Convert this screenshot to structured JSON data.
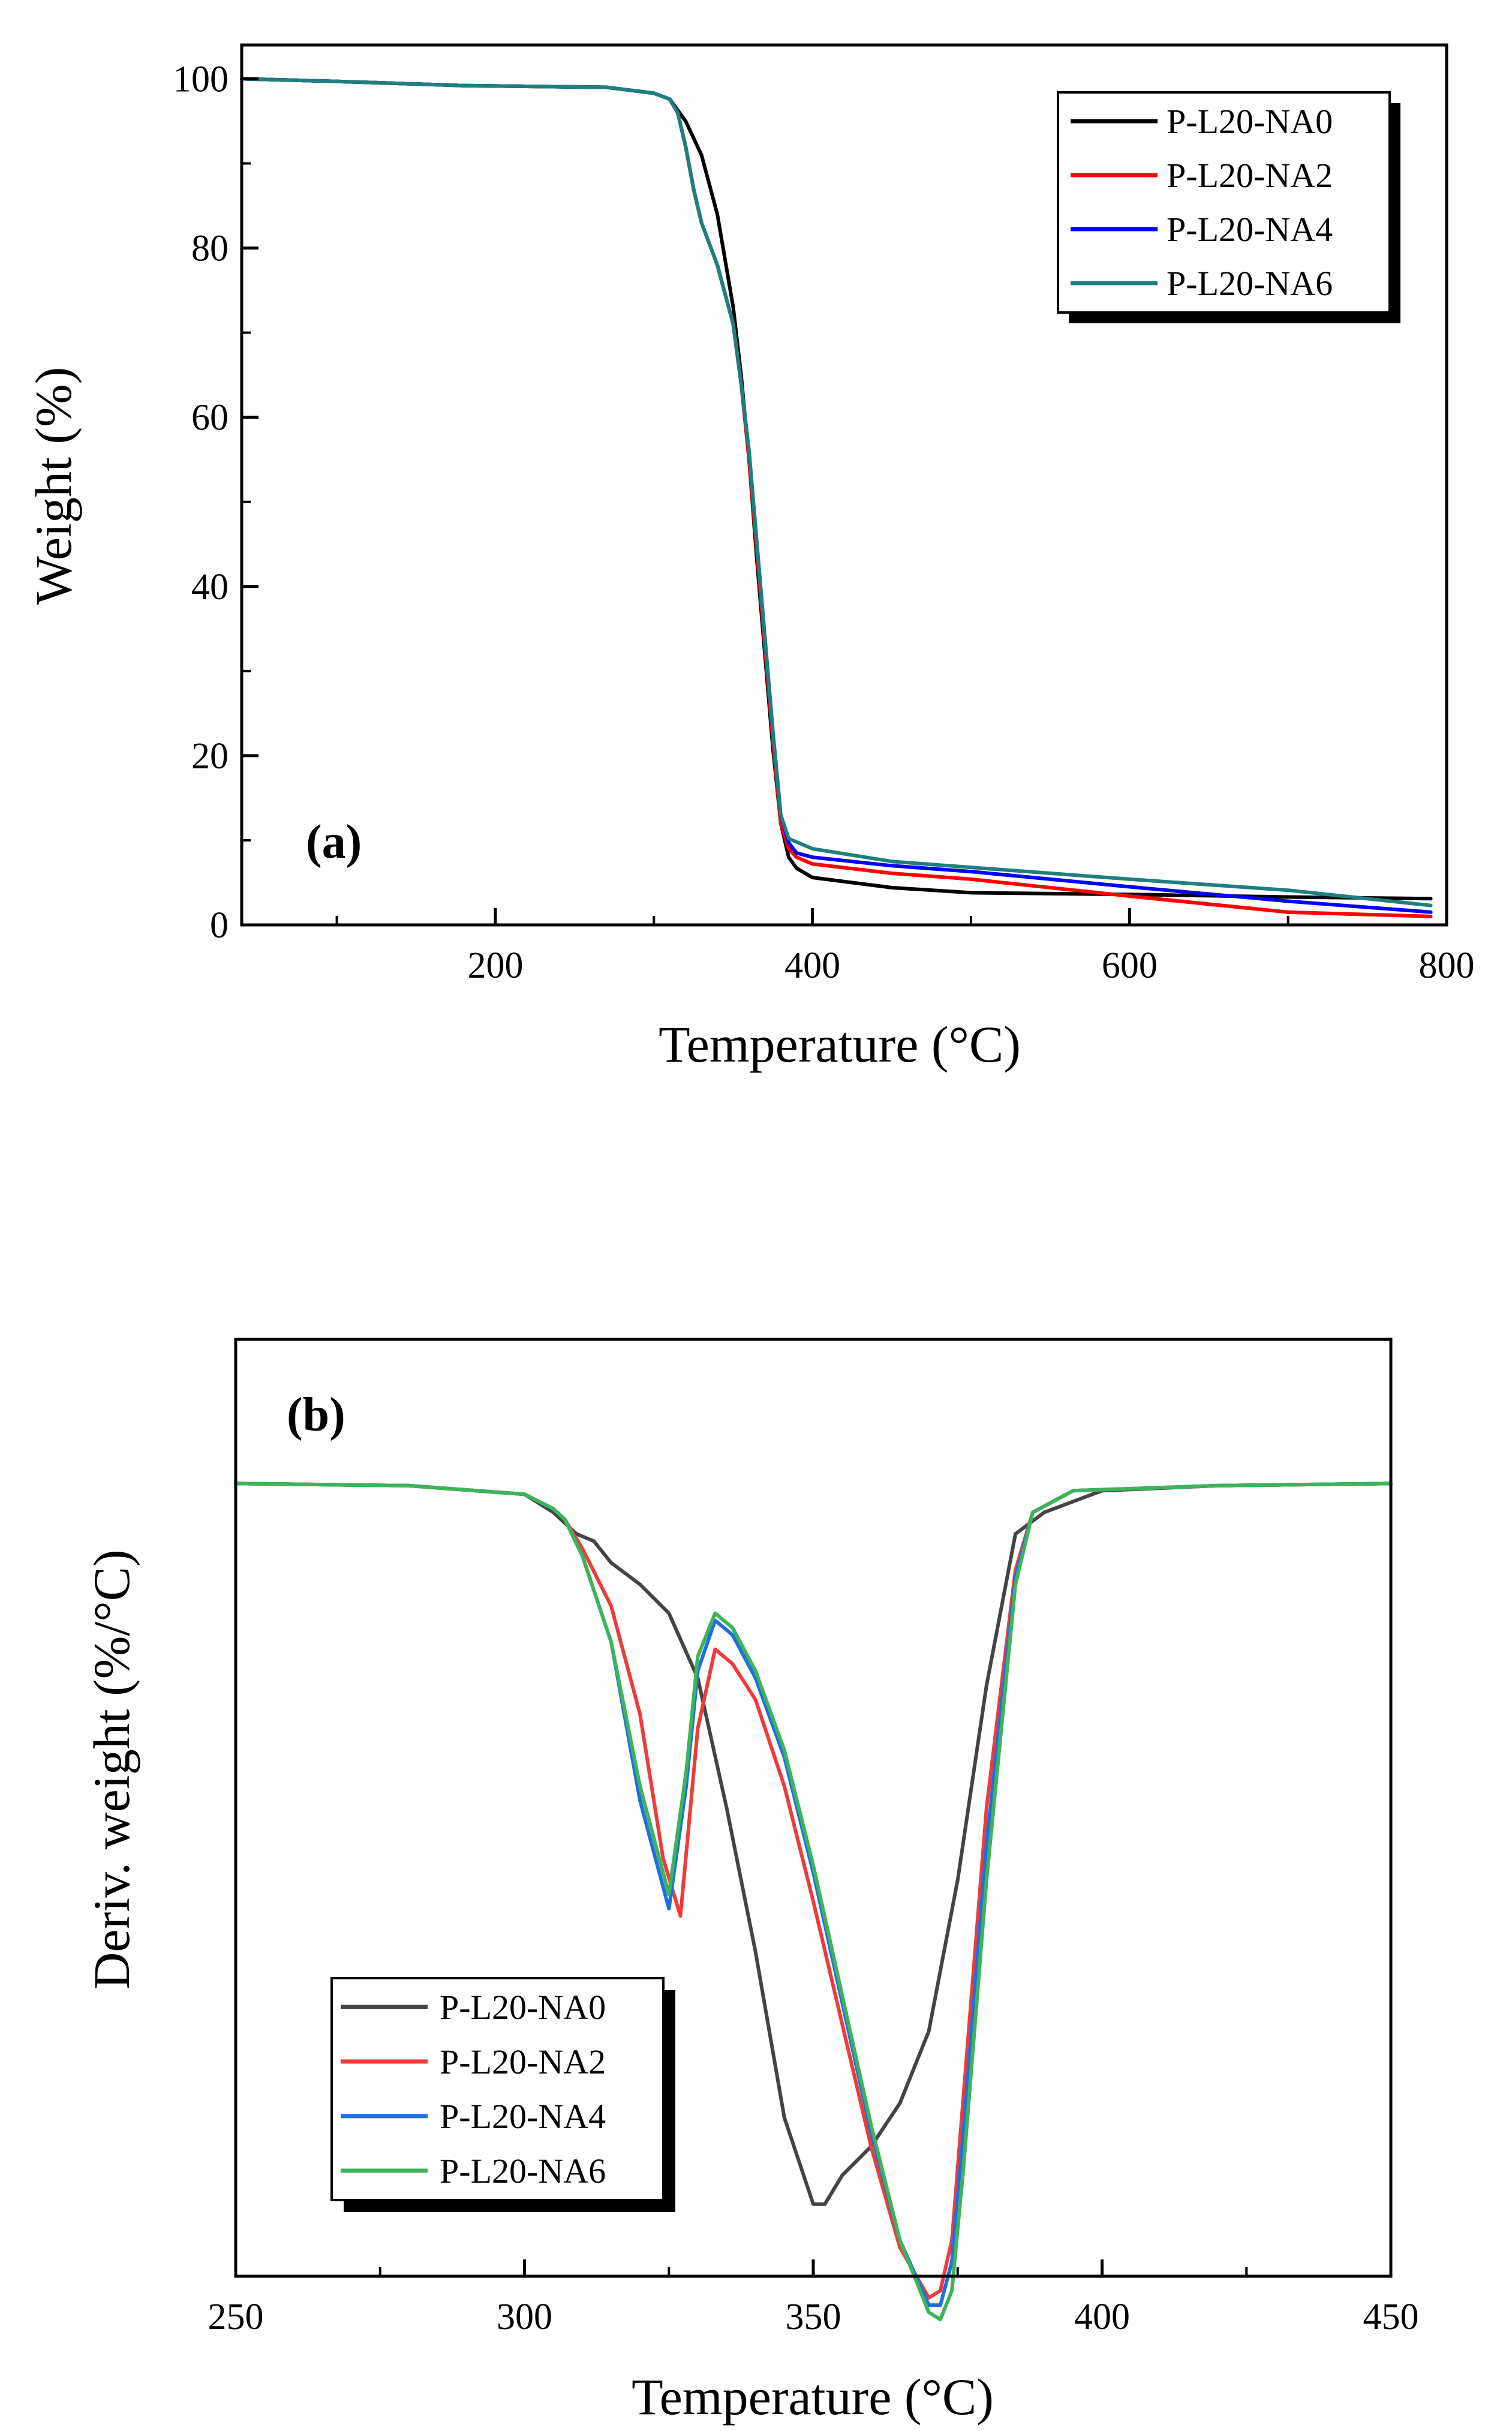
{
  "colors": {
    "axis": "#000000",
    "legend_shadow": "#000000",
    "tga": {
      "P-L20-NA0": "#000000",
      "P-L20-NA2": "#ff0000",
      "P-L20-NA4": "#0000ff",
      "P-L20-NA6": "#1f7f7f"
    },
    "dtg": {
      "P-L20-NA0": "#444444",
      "P-L20-NA2": "#ee3b3b",
      "P-L20-NA4": "#1f6fe0",
      "P-L20-NA6": "#3cb45a"
    }
  },
  "chart_data": [
    {
      "id": "a",
      "type": "line",
      "panel_label": "(a)",
      "xlabel": "Temperature (°C)",
      "ylabel": "Weight (%)",
      "xlim": [
        40,
        800
      ],
      "ylim": [
        0,
        104
      ],
      "xticks": [
        200,
        400,
        600,
        800
      ],
      "yticks": [
        0,
        20,
        40,
        60,
        80,
        100
      ],
      "legend_position": "top-right",
      "series": [
        {
          "name": "P-L20-NA0",
          "x": [
            40,
            100,
            180,
            270,
            300,
            310,
            320,
            330,
            340,
            350,
            355,
            360,
            365,
            370,
            375,
            380,
            385,
            390,
            400,
            450,
            500,
            600,
            700,
            790
          ],
          "y": [
            100,
            99.7,
            99.2,
            99,
            98.3,
            97.6,
            95,
            91,
            84,
            73,
            65,
            55,
            43,
            32,
            21,
            12,
            8,
            6.7,
            5.6,
            4.4,
            3.8,
            3.6,
            3.3,
            3.1
          ]
        },
        {
          "name": "P-L20-NA2",
          "x": [
            40,
            100,
            180,
            270,
            300,
            310,
            315,
            320,
            325,
            330,
            340,
            350,
            355,
            360,
            365,
            370,
            375,
            380,
            385,
            390,
            400,
            450,
            500,
            600,
            700,
            790
          ],
          "y": [
            100,
            99.7,
            99.2,
            99,
            98.3,
            97.6,
            96,
            92,
            87,
            83,
            78,
            71,
            64,
            55,
            44,
            33,
            22,
            12,
            9,
            8,
            7.2,
            6.1,
            5.4,
            3.4,
            1.5,
            1
          ]
        },
        {
          "name": "P-L20-NA4",
          "x": [
            40,
            100,
            180,
            270,
            300,
            310,
            315,
            320,
            325,
            330,
            340,
            350,
            355,
            360,
            365,
            370,
            375,
            380,
            385,
            390,
            400,
            450,
            500,
            600,
            700,
            790
          ],
          "y": [
            100,
            99.7,
            99.2,
            99,
            98.3,
            97.6,
            96,
            92,
            87,
            83,
            78,
            71,
            64,
            56,
            45,
            34,
            23,
            13,
            9.7,
            8.5,
            8,
            7,
            6.3,
            4.5,
            2.8,
            1.5
          ]
        },
        {
          "name": "P-L20-NA6",
          "x": [
            40,
            100,
            180,
            270,
            300,
            310,
            315,
            320,
            325,
            330,
            340,
            350,
            355,
            360,
            365,
            370,
            375,
            380,
            385,
            390,
            400,
            450,
            500,
            600,
            700,
            790
          ],
          "y": [
            100,
            99.7,
            99.2,
            99,
            98.3,
            97.6,
            96,
            92,
            87,
            83,
            78,
            71,
            64,
            56,
            45,
            34,
            23,
            13,
            10.2,
            9.8,
            9,
            7.5,
            6.8,
            5.4,
            4.1,
            2.3
          ]
        }
      ]
    },
    {
      "id": "b",
      "type": "line",
      "panel_label": "(b)",
      "xlabel": "Temperature (°C)",
      "ylabel": "Deriv. weight (%/°C)",
      "y_units": "arbitrary (no tick labels)",
      "xlim": [
        250,
        450
      ],
      "ylim": [
        -1.1,
        0.2
      ],
      "xticks": [
        250,
        300,
        350,
        400,
        450
      ],
      "legend_position": "bottom-left",
      "series": [
        {
          "name": "P-L20-NA0",
          "x": [
            250,
            280,
            300,
            305,
            309,
            312,
            315,
            320,
            325,
            330,
            335,
            340,
            345,
            350,
            352,
            355,
            360,
            365,
            370,
            375,
            380,
            385,
            390,
            395,
            400,
            420,
            450
          ],
          "y": [
            0,
            -0.003,
            -0.015,
            -0.04,
            -0.07,
            -0.08,
            -0.11,
            -0.14,
            -0.18,
            -0.27,
            -0.45,
            -0.65,
            -0.88,
            -1.0,
            -1.0,
            -0.96,
            -0.92,
            -0.86,
            -0.76,
            -0.55,
            -0.28,
            -0.07,
            -0.04,
            -0.025,
            -0.01,
            -0.003,
            0
          ]
        },
        {
          "name": "P-L20-NA2",
          "x": [
            250,
            280,
            300,
            305,
            307,
            310,
            315,
            320,
            324,
            327,
            330,
            333,
            336,
            340,
            345,
            350,
            355,
            360,
            365,
            370,
            372,
            374,
            376,
            380,
            385,
            388,
            395,
            420,
            450
          ],
          "y": [
            0,
            -0.003,
            -0.015,
            -0.035,
            -0.05,
            -0.09,
            -0.17,
            -0.32,
            -0.52,
            -0.6,
            -0.34,
            -0.23,
            -0.25,
            -0.3,
            -0.42,
            -0.58,
            -0.75,
            -0.92,
            -1.06,
            -1.13,
            -1.12,
            -1.05,
            -0.85,
            -0.45,
            -0.12,
            -0.04,
            -0.01,
            -0.003,
            0
          ]
        },
        {
          "name": "P-L20-NA4",
          "x": [
            250,
            280,
            300,
            305,
            307,
            310,
            315,
            320,
            325,
            328,
            330,
            333,
            336,
            340,
            345,
            350,
            355,
            360,
            365,
            370,
            372,
            374,
            376,
            380,
            385,
            388,
            395,
            420,
            450
          ],
          "y": [
            0,
            -0.003,
            -0.015,
            -0.035,
            -0.05,
            -0.1,
            -0.22,
            -0.44,
            -0.59,
            -0.42,
            -0.26,
            -0.19,
            -0.21,
            -0.27,
            -0.38,
            -0.54,
            -0.72,
            -0.9,
            -1.05,
            -1.14,
            -1.14,
            -1.08,
            -0.9,
            -0.5,
            -0.13,
            -0.04,
            -0.01,
            -0.003,
            0
          ]
        },
        {
          "name": "P-L20-NA6",
          "x": [
            250,
            280,
            300,
            305,
            307,
            310,
            315,
            320,
            325,
            328,
            330,
            333,
            336,
            340,
            345,
            350,
            355,
            360,
            365,
            370,
            372,
            374,
            376,
            380,
            385,
            388,
            395,
            420,
            450
          ],
          "y": [
            0,
            -0.003,
            -0.015,
            -0.035,
            -0.05,
            -0.1,
            -0.22,
            -0.42,
            -0.57,
            -0.4,
            -0.24,
            -0.18,
            -0.2,
            -0.26,
            -0.37,
            -0.53,
            -0.71,
            -0.89,
            -1.05,
            -1.15,
            -1.16,
            -1.12,
            -0.95,
            -0.55,
            -0.14,
            -0.04,
            -0.01,
            -0.003,
            0
          ]
        }
      ]
    }
  ]
}
